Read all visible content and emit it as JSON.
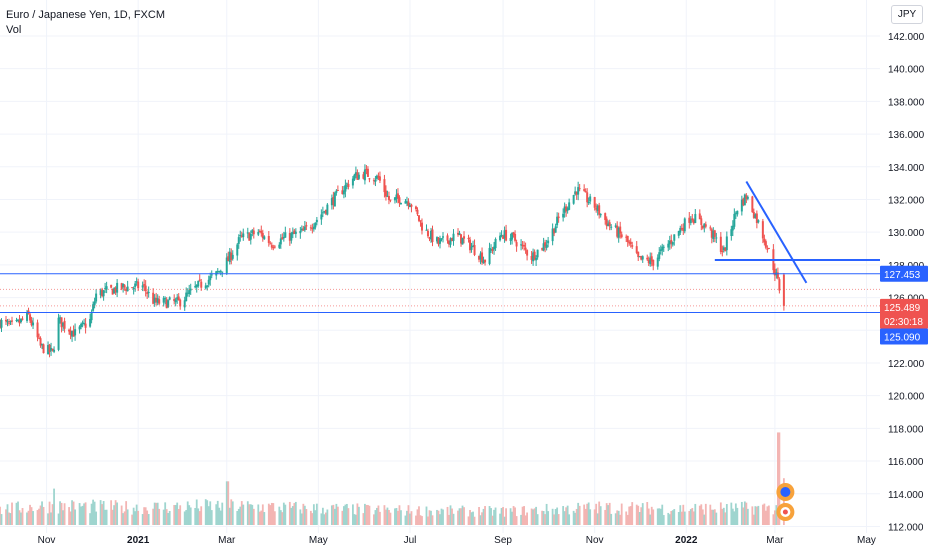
{
  "symbol": {
    "title": "Euro / Japanese Yen, 1D, FXCM",
    "indicator": "Vol",
    "currency": "JPY"
  },
  "colors": {
    "up": "#26a69a",
    "down": "#ef5350",
    "vol_up": "#9fd5cf",
    "vol_down": "#f3b5b3",
    "line": "#2962ff",
    "tag_blue": "#2962ff",
    "tag_red": "#ef5350"
  },
  "price_tags": {
    "support_high": "127.453",
    "last": "125.489",
    "countdown": "02:30:18",
    "support_low": "125.090"
  },
  "chart_data": {
    "type": "candlestick",
    "x_range": [
      "2020-10-01",
      "2022-05-10"
    ],
    "y_range": [
      111.6,
      144.2
    ],
    "y_ticks": [
      "142.000",
      "140.000",
      "138.000",
      "136.000",
      "134.000",
      "132.000",
      "130.000",
      "128.000",
      "126.000",
      "124.000",
      "122.000",
      "120.000",
      "118.000",
      "116.000",
      "114.000",
      "112.000"
    ],
    "x_ticks": [
      {
        "label": "Nov",
        "date": "2020-11-01",
        "bold": false
      },
      {
        "label": "2021",
        "date": "2021-01-01",
        "bold": true
      },
      {
        "label": "Mar",
        "date": "2021-03-01",
        "bold": false
      },
      {
        "label": "May",
        "date": "2021-05-01",
        "bold": false
      },
      {
        "label": "Jul",
        "date": "2021-07-01",
        "bold": false
      },
      {
        "label": "Sep",
        "date": "2021-09-01",
        "bold": false
      },
      {
        "label": "Nov",
        "date": "2021-11-01",
        "bold": false
      },
      {
        "label": "2022",
        "date": "2022-01-01",
        "bold": true
      },
      {
        "label": "Mar",
        "date": "2022-03-01",
        "bold": false
      },
      {
        "label": "May",
        "date": "2022-05-01",
        "bold": false
      }
    ],
    "price_path": [
      [
        "2020-10-01",
        124.5
      ],
      [
        "2020-10-10",
        124.2
      ],
      [
        "2020-10-20",
        124.9
      ],
      [
        "2020-10-28",
        123.0
      ],
      [
        "2020-11-05",
        122.6
      ],
      [
        "2020-11-09",
        124.6
      ],
      [
        "2020-11-20",
        123.8
      ],
      [
        "2020-11-30",
        124.6
      ],
      [
        "2020-12-04",
        126.2
      ],
      [
        "2020-12-20",
        126.6
      ],
      [
        "2021-01-04",
        126.7
      ],
      [
        "2021-01-12",
        125.7
      ],
      [
        "2021-01-28",
        125.7
      ],
      [
        "2021-02-10",
        126.7
      ],
      [
        "2021-02-22",
        127.4
      ],
      [
        "2021-03-02",
        128.3
      ],
      [
        "2021-03-10",
        129.6
      ],
      [
        "2021-03-22",
        130.0
      ],
      [
        "2021-03-31",
        129.3
      ],
      [
        "2021-04-10",
        129.7
      ],
      [
        "2021-04-21",
        130.0
      ],
      [
        "2021-04-30",
        130.8
      ],
      [
        "2021-05-10",
        131.9
      ],
      [
        "2021-05-25",
        133.4
      ],
      [
        "2021-06-01",
        133.6
      ],
      [
        "2021-06-10",
        133.3
      ],
      [
        "2021-06-18",
        131.8
      ],
      [
        "2021-06-24",
        132.1
      ],
      [
        "2021-07-01",
        131.9
      ],
      [
        "2021-07-10",
        130.2
      ],
      [
        "2021-07-20",
        129.3
      ],
      [
        "2021-08-01",
        129.8
      ],
      [
        "2021-08-10",
        129.2
      ],
      [
        "2021-08-20",
        128.3
      ],
      [
        "2021-08-31",
        129.9
      ],
      [
        "2021-09-08",
        129.6
      ],
      [
        "2021-09-20",
        128.5
      ],
      [
        "2021-09-30",
        129.4
      ],
      [
        "2021-10-08",
        130.8
      ],
      [
        "2021-10-20",
        132.6
      ],
      [
        "2021-11-01",
        131.6
      ],
      [
        "2021-11-10",
        130.5
      ],
      [
        "2021-11-22",
        129.5
      ],
      [
        "2021-11-30",
        128.3
      ],
      [
        "2021-12-10",
        128.2
      ],
      [
        "2021-12-22",
        129.5
      ],
      [
        "2022-01-04",
        131.0
      ],
      [
        "2022-01-15",
        130.3
      ],
      [
        "2022-01-26",
        128.8
      ],
      [
        "2022-02-04",
        131.5
      ],
      [
        "2022-02-10",
        132.2
      ],
      [
        "2022-02-17",
        130.8
      ],
      [
        "2022-02-24",
        129.1
      ],
      [
        "2022-03-02",
        127.3
      ],
      [
        "2022-03-07",
        125.489
      ]
    ],
    "volume_path": [
      [
        "2020-10-01",
        0.32
      ],
      [
        "2020-11-01",
        0.4
      ],
      [
        "2021-01-01",
        0.36
      ],
      [
        "2021-03-01",
        0.4
      ],
      [
        "2021-05-01",
        0.34
      ],
      [
        "2021-07-01",
        0.3
      ],
      [
        "2021-09-01",
        0.28
      ],
      [
        "2021-11-01",
        0.36
      ],
      [
        "2022-01-01",
        0.34
      ],
      [
        "2022-03-01",
        0.36
      ]
    ],
    "volume_spikes": [
      [
        "2020-11-07",
        0.7
      ],
      [
        "2021-03-01",
        0.84
      ],
      [
        "2022-03-04",
        1.78
      ]
    ],
    "horizontal_lines": [
      {
        "price": 127.453,
        "style": "solid",
        "width": 1
      },
      {
        "price": 125.09,
        "style": "solid",
        "width": 1
      },
      {
        "price": 126.5,
        "style": "dotted",
        "width": 1
      },
      {
        "price": 125.489,
        "style": "dotted",
        "width": 1
      }
    ],
    "drawings": [
      {
        "kind": "trendline",
        "from": [
          "2022-02-10",
          133.1
        ],
        "to": [
          "2022-03-22",
          126.9
        ]
      },
      {
        "kind": "level",
        "from": [
          "2022-01-20",
          128.3
        ],
        "to": [
          "2022-05-10",
          128.3
        ]
      }
    ]
  }
}
